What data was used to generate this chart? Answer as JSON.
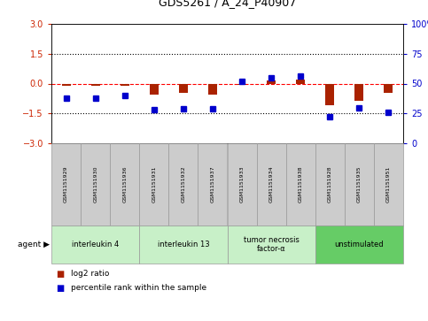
{
  "title": "GDS5261 / A_24_P40907",
  "samples": [
    "GSM1151929",
    "GSM1151930",
    "GSM1151936",
    "GSM1151931",
    "GSM1151932",
    "GSM1151937",
    "GSM1151933",
    "GSM1151934",
    "GSM1151938",
    "GSM1151928",
    "GSM1151935",
    "GSM1151951"
  ],
  "log2_ratio": [
    -0.12,
    -0.1,
    -0.13,
    -0.55,
    -0.45,
    -0.55,
    -0.05,
    0.15,
    0.2,
    -1.1,
    -0.85,
    -0.45
  ],
  "percentile_rank": [
    38,
    38,
    40,
    28,
    29,
    29,
    52,
    55,
    56,
    22,
    30,
    26
  ],
  "agent_groups": [
    {
      "label": "interleukin 4",
      "start": 0,
      "end": 3,
      "color": "#c8f0c8"
    },
    {
      "label": "interleukin 13",
      "start": 3,
      "end": 6,
      "color": "#c8f0c8"
    },
    {
      "label": "tumor necrosis\nfactor-α",
      "start": 6,
      "end": 9,
      "color": "#c8f0c8"
    },
    {
      "label": "unstimulated",
      "start": 9,
      "end": 12,
      "color": "#66cc66"
    }
  ],
  "ylim_left": [
    -3,
    3
  ],
  "ylim_right": [
    0,
    100
  ],
  "yticks_left": [
    -3,
    -1.5,
    0,
    1.5,
    3
  ],
  "yticks_right": [
    0,
    25,
    50,
    75,
    100
  ],
  "bar_color": "#aa2200",
  "dot_color": "#0000cc",
  "bg_color": "#ffffff",
  "ylabel_left_color": "#cc2200",
  "ylabel_right_color": "#0000cc",
  "legend_items": [
    "log2 ratio",
    "percentile rank within the sample"
  ]
}
